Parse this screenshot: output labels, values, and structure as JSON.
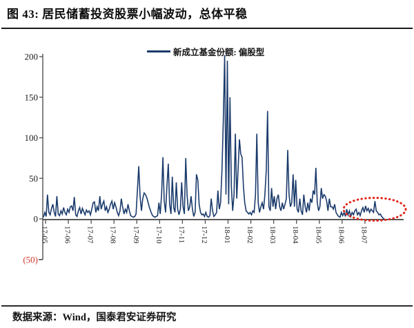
{
  "header": {
    "title": "图 43: 居民储蓄投资股票小幅波动，总体平稳"
  },
  "footer": {
    "source": "数据来源：Wind，国泰君安证券研究"
  },
  "chart_data": {
    "type": "line",
    "title": "图 43: 居民储蓄投资股票小幅波动，总体平稳",
    "legend": "新成立基金份额: 偏股型",
    "legend_position": "top-center",
    "grid": false,
    "categories": [
      "17-05",
      "17-06",
      "17-07",
      "17-08",
      "17-09",
      "17-10",
      "17-11",
      "17-12",
      "18-01",
      "18-02",
      "18-03",
      "18-04",
      "18-05",
      "18-06",
      "18-07"
    ],
    "y_ticks": [
      200,
      150,
      100,
      50,
      0,
      -50
    ],
    "y_tick_labels": [
      "200",
      "150",
      "100",
      "50",
      "0",
      "(50)"
    ],
    "ylim": [
      -50,
      200
    ],
    "colors": {
      "series": "#1a3a6b",
      "axis": "#4f4f4f",
      "tick_label": "#1a1a1a",
      "negative_tick_label": "#d4362b",
      "annotation": "#e0261c"
    },
    "annotation": {
      "shape": "dotted-ellipse",
      "highlight_months": [
        "18-06",
        "18-07"
      ]
    },
    "series": [
      {
        "name": "新成立基金份额: 偏股型",
        "points_per_month": 17,
        "values": [
          2,
          8,
          3,
          30,
          8,
          5,
          13,
          18,
          8,
          3,
          28,
          6,
          4,
          10,
          6,
          14,
          8,
          5,
          12,
          8,
          15,
          16,
          10,
          27,
          5,
          3,
          10,
          14,
          6,
          13,
          9,
          5,
          11,
          8,
          10,
          5,
          12,
          20,
          21,
          8,
          15,
          10,
          28,
          12,
          18,
          22,
          10,
          15,
          8,
          12,
          18,
          22,
          12,
          20,
          15,
          8,
          4,
          10,
          25,
          15,
          6,
          12,
          8,
          18,
          10,
          4,
          3,
          2,
          3,
          6,
          35,
          65,
          28,
          10,
          25,
          32,
          30,
          26,
          20,
          14,
          9,
          5,
          3,
          2,
          3,
          4,
          20,
          6,
          30,
          76,
          22,
          8,
          40,
          68,
          18,
          6,
          52,
          14,
          8,
          45,
          12,
          5,
          12,
          45,
          15,
          6,
          75,
          30,
          10,
          15,
          28,
          12,
          3,
          8,
          55,
          48,
          18,
          8,
          5,
          6,
          3,
          8,
          3,
          2,
          4,
          25,
          10,
          3,
          5,
          8,
          35,
          12,
          20,
          60,
          120,
          202,
          30,
          195,
          18,
          150,
          40,
          10,
          30,
          105,
          25,
          60,
          98,
          80,
          76,
          40,
          20,
          10,
          8,
          6,
          8,
          5,
          10,
          8,
          30,
          105,
          20,
          8,
          15,
          20,
          12,
          30,
          60,
          133,
          15,
          10,
          38,
          15,
          28,
          12,
          25,
          30,
          15,
          10,
          20,
          12,
          18,
          25,
          85,
          30,
          15,
          20,
          55,
          15,
          48,
          12,
          8,
          25,
          10,
          5,
          30,
          15,
          8,
          20,
          10,
          25,
          20,
          35,
          30,
          63,
          20,
          10,
          15,
          38,
          25,
          30,
          28,
          22,
          10,
          25,
          15,
          15,
          12,
          18,
          8,
          5,
          3,
          2,
          8,
          4,
          8,
          3,
          12,
          5,
          10,
          3,
          8,
          5,
          10,
          12,
          5,
          8,
          4,
          10,
          14,
          8,
          16,
          10,
          13,
          8,
          12,
          10,
          8,
          22,
          10,
          8,
          5,
          6,
          3,
          1,
          0
        ]
      }
    ]
  }
}
